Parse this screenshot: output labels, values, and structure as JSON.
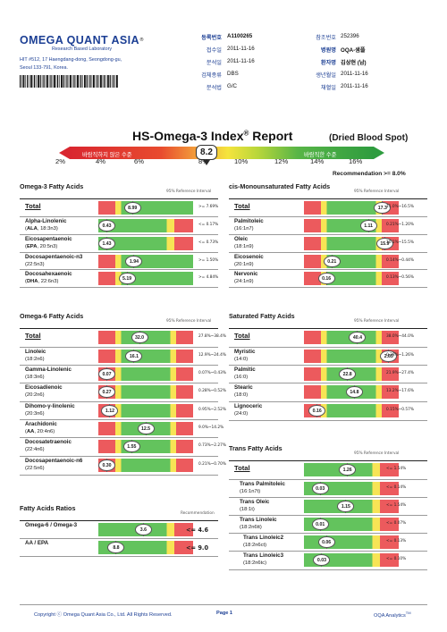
{
  "header": {
    "brand_name": "OMEGA QUANT ASIA",
    "brand_reg": "®",
    "brand_sub": "Research Based Laboratory",
    "address_line1": "HIT #512, 17 Haengdang-dong, Seongdong-gu,",
    "address_line2": "Seoul 133-791, Korea."
  },
  "info": {
    "col1": [
      {
        "label": "등록번호",
        "value": "A1100265",
        "bold": true
      },
      {
        "label": "접수일",
        "value": "2011-11-16"
      },
      {
        "label": "분석일",
        "value": "2011-11-16"
      },
      {
        "label": "검체종류",
        "value": "DBS"
      },
      {
        "label": "분석법",
        "value": "G/C"
      }
    ],
    "col2": [
      {
        "label": "참조번호",
        "value": "252396"
      },
      {
        "label": "병원명",
        "value": "OQA-샘플",
        "bold": true
      },
      {
        "label": "환자명",
        "value": "김상현 (남)",
        "bold": true
      },
      {
        "label": "생년월일",
        "value": "2011-11-16"
      },
      {
        "label": "채혈일",
        "value": "2011-11-16"
      }
    ]
  },
  "title": {
    "main": "HS-Omega-3 Index",
    "reg": "®",
    "report": " Report",
    "sub": "(Dried Blood Spot)"
  },
  "index_bar": {
    "left_label": "바람직하지 않은 수준",
    "right_label": "바람직한 수준",
    "value": "8.2",
    "ticks": [
      "2%",
      "4%",
      "6%",
      "8%",
      "10%",
      "12%",
      "14%",
      "16%"
    ],
    "recommendation": "Recommendation   >= 8.0%"
  },
  "sections": {
    "omega3": {
      "title": "Omega-3 Fatty Acids",
      "ref_header": "95% Reference Interval",
      "rows": [
        {
          "name": "Total",
          "sub": "",
          "value": "8.99",
          "pos": 0.33,
          "ref": ">= 7.69%"
        },
        {
          "name": "Alpha-Linolenic",
          "sub_bold": "ALA",
          "sub_rest": ", 18:3n3",
          "value": "0.43",
          "pos": 0.0,
          "ref": "<= 0.17%"
        },
        {
          "name": "Eicosapentaenoic",
          "sub_bold": "EPA",
          "sub_rest": ", 20:5n3",
          "value": "1.43",
          "pos": 0.0,
          "ref": "<= 0.73%"
        },
        {
          "name": "Docosapentaenoic-n3",
          "sub": "(22:5n3)",
          "value": "1.94",
          "pos": 0.35,
          "ref": ">= 1.50%"
        },
        {
          "name": "Docosahexaenoic",
          "sub_bold": "DHA",
          "sub_rest": ", 22:6n3",
          "value": "5.19",
          "pos": 0.26,
          "ref": ">= 4.84%"
        }
      ]
    },
    "cismono": {
      "title": "cis-Monounsaturated Fatty Acids",
      "ref_header": "95% Reference Interval",
      "rows": [
        {
          "name": "Total",
          "sub": "",
          "value": "17.3",
          "pos": 0.9,
          "ref": "11.0%~16.5%"
        },
        {
          "name": "Palmitoleic",
          "sub": "(16:1n7)",
          "value": "1.11",
          "pos": 0.72,
          "ref": "0.21%~1.20%"
        },
        {
          "name": "Oleic",
          "sub": "(18:1n9)",
          "value": "15.9",
          "pos": 0.93,
          "ref": "10.1%~15.5%"
        },
        {
          "name": "Eicosenoic",
          "sub": "(20:1n9)",
          "value": "0.21",
          "pos": 0.25,
          "ref": "0.14%~0.44%"
        },
        {
          "name": "Nervonic",
          "sub": "(24:1n9)",
          "value": "0.16",
          "pos": 0.18,
          "ref": "0.13%~0.56%"
        }
      ]
    },
    "omega6": {
      "title": "Omega-6 Fatty Acids",
      "ref_header": "95% Reference Interval",
      "rows": [
        {
          "name": "Total",
          "sub": "",
          "value": "32.0",
          "pos": 0.42,
          "ref": "27.8%~38.4%"
        },
        {
          "name": "Linoleic",
          "sub": "(18:2n6)",
          "value": "16.1",
          "pos": 0.35,
          "ref": "12.9%~24.4%"
        },
        {
          "name": "Gamma-Linolenic",
          "sub": "(18:3n6)",
          "value": "0.07",
          "pos": 0.0,
          "ref": "0.07%~0.43%"
        },
        {
          "name": "Eicosadienoic",
          "sub": "(20:2n6)",
          "value": "0.27",
          "pos": 0.0,
          "ref": "0.28%~0.52%"
        },
        {
          "name": "Dihomo-γ-linolenic",
          "sub": "(20:3n6)",
          "value": "1.12",
          "pos": 0.04,
          "ref": "0.95%~2.52%"
        },
        {
          "name": "Arachidonic",
          "sub_bold": "AA",
          "sub_rest": ", 20:4n6",
          "value": "12.5",
          "pos": 0.5,
          "ref": "9.0%~14.2%"
        },
        {
          "name": "Docosatetraenoic",
          "sub": "(22:4n6)",
          "value": "1.55",
          "pos": 0.32,
          "ref": "0.73%~2.27%"
        },
        {
          "name": "Docosapentaenoic-n6",
          "sub": "(22:5n6)",
          "value": "0.30",
          "pos": 0.0,
          "ref": "0.21%~0.70%"
        }
      ]
    },
    "saturated": {
      "title": "Saturated Fatty Acids",
      "ref_header": "95% Reference Interval",
      "rows": [
        {
          "name": "Total",
          "sub": "",
          "value": "40.4",
          "pos": 0.58,
          "ref": "38.0%~44.0%"
        },
        {
          "name": "Myristic",
          "sub": "(14:0)",
          "value": "2.65",
          "pos": 0.98,
          "ref": "0.28%~1.26%"
        },
        {
          "name": "Palmitic",
          "sub": "(16:0)",
          "value": "22.8",
          "pos": 0.45,
          "ref": "21.9%~27.4%"
        },
        {
          "name": "Stearic",
          "sub": "(18:0)",
          "value": "14.8",
          "pos": 0.54,
          "ref": "13.2%~17.6%"
        },
        {
          "name": "Lignoceric",
          "sub": "(24:0)",
          "value": "0.16",
          "pos": 0.06,
          "ref": "0.15%~0.57%"
        }
      ]
    },
    "trans": {
      "title": "Trans Fatty Acids",
      "ref_header": "95% Reference Interval",
      "rows": [
        {
          "name": "Total",
          "sub": "",
          "value": "1.26",
          "pos": 0.45,
          "ref": "<= 1.54%"
        },
        {
          "name": "Trans Palmitoleic",
          "sub": "(16:1n7t)",
          "value": "0.03",
          "pos": 0.1,
          "ref": "<= 0.14%"
        },
        {
          "name": "Trans Oleic",
          "sub": "(18:1t)",
          "value": "1.15",
          "pos": 0.43,
          "ref": "<= 1.54%"
        },
        {
          "name": "Trans Linoleic",
          "sub": "(18:2n6tt)",
          "value": "0.01",
          "pos": 0.1,
          "ref": "<= 0.07%"
        },
        {
          "name": "Trans Linoleic2",
          "sub": "(18:2n6ct)",
          "value": "0.06",
          "pos": 0.18,
          "ref": "<= 0.13%"
        },
        {
          "name": "Trans Linoleic3",
          "sub": "(18:2n6tc)",
          "value": "0.03",
          "pos": 0.12,
          "ref": "<= 0.10%"
        }
      ]
    },
    "ratios": {
      "title": "Fatty Acids Ratios",
      "ref_header": "Recommendation",
      "rows": [
        {
          "name": "Omega-6 / Omega-3",
          "value": "3.6",
          "pos": 0.47,
          "ref": "<= 4.6"
        },
        {
          "name": "AA / EPA",
          "value": "8.8",
          "pos": 0.12,
          "ref": "<= 9.0"
        }
      ]
    }
  },
  "footer": {
    "copyright": "Copyright ⓒ Omega Quant Asia Co., Ltd.  All Rights Reserved.",
    "page": "Page 1",
    "product": "OQA Analytics",
    "tm": "TM"
  },
  "colors": {
    "red": "#ec5a5d",
    "yellow": "#f7e455",
    "green": "#63c35d",
    "navy": "#1c3f94"
  }
}
